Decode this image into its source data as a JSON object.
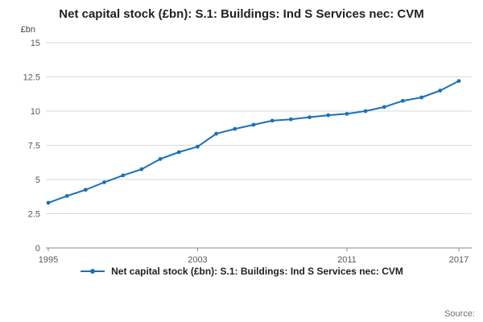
{
  "header": {
    "title": "Net capital stock (£bn): S.1: Buildings: Ind S Services nec: CVM"
  },
  "legend": {
    "label": "Net capital stock (£bn): S.1: Buildings: Ind S Services nec: CVM"
  },
  "footer": {
    "source_label": "Source:"
  },
  "chart_data": {
    "type": "line",
    "title": "Net capital stock (£bn): S.1: Buildings: Ind S Services nec: CVM",
    "xlabel": "",
    "ylabel": "£bn",
    "x": [
      1995,
      1996,
      1997,
      1998,
      1999,
      2000,
      2001,
      2002,
      2003,
      2004,
      2005,
      2006,
      2007,
      2008,
      2009,
      2010,
      2011,
      2012,
      2013,
      2014,
      2015,
      2016,
      2017
    ],
    "values": [
      3.3,
      3.8,
      4.25,
      4.8,
      5.3,
      5.75,
      6.5,
      7.0,
      7.4,
      8.35,
      8.7,
      9.0,
      9.3,
      9.4,
      9.55,
      9.7,
      9.8,
      10.0,
      10.3,
      10.75,
      11.0,
      11.5,
      12.2
    ],
    "ylim": [
      0,
      15
    ],
    "yticks": [
      0,
      2.5,
      5,
      7.5,
      10,
      12.5,
      15
    ],
    "xticks": [
      1995,
      2003,
      2011,
      2017
    ],
    "color": "#1d70b8",
    "grid": true,
    "gridline_color": "#d9d9d9",
    "axis_color": "#888888",
    "tick_label_color": "#595959",
    "legend_position": "bottom"
  }
}
